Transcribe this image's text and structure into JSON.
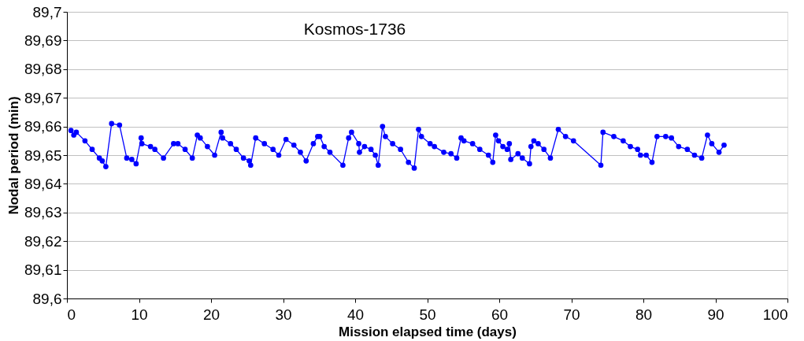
{
  "chart_data": {
    "type": "line",
    "title": "Kosmos-1736",
    "xlabel": "Mission elapsed time (days)",
    "ylabel": "Nodal period (min)",
    "x": [
      0.56,
      0.95,
      1.3,
      2.5,
      3.5,
      4.5,
      4.9,
      5.4,
      6.2,
      7.3,
      8.3,
      9.0,
      9.6,
      10.3,
      10.4,
      11.6,
      12.2,
      13.4,
      14.8,
      15.4,
      16.4,
      17.4,
      18.1,
      18.5,
      19.5,
      20.5,
      21.4,
      21.6,
      22.7,
      23.5,
      24.5,
      25.3,
      25.5,
      26.2,
      27.4,
      28.6,
      29.4,
      30.4,
      31.5,
      32.4,
      33.2,
      34.2,
      34.8,
      35.1,
      35.7,
      36.5,
      38.3,
      39.1,
      39.5,
      40.5,
      40.6,
      41.3,
      42.2,
      42.8,
      43.2,
      43.8,
      44.2,
      45.2,
      46.3,
      47.4,
      48.2,
      48.8,
      49.2,
      50.4,
      51.0,
      52.3,
      53.3,
      54.1,
      54.7,
      55.1,
      56.3,
      57.3,
      58.5,
      59.1,
      59.5,
      59.9,
      60.5,
      61.1,
      61.4,
      61.6,
      62.6,
      63.2,
      64.2,
      64.4,
      64.8,
      65.4,
      66.2,
      67.1,
      68.2,
      69.2,
      70.3,
      74.1,
      74.4,
      75.9,
      77.2,
      78.2,
      79.2,
      79.6,
      80.4,
      81.2,
      81.9,
      83.1,
      83.9,
      84.9,
      86.1,
      87.1,
      88.1,
      88.9,
      89.5,
      90.5,
      91.2
    ],
    "series": [
      {
        "color": "#0000ff",
        "values": [
          89.6586,
          89.657,
          89.658,
          89.655,
          89.652,
          89.649,
          89.648,
          89.646,
          89.661,
          89.6605,
          89.649,
          89.6485,
          89.647,
          89.656,
          89.654,
          89.653,
          89.652,
          89.649,
          89.654,
          89.654,
          89.652,
          89.649,
          89.657,
          89.656,
          89.653,
          89.65,
          89.658,
          89.656,
          89.654,
          89.652,
          89.649,
          89.648,
          89.6465,
          89.656,
          89.654,
          89.652,
          89.65,
          89.6555,
          89.6535,
          89.651,
          89.648,
          89.654,
          89.6565,
          89.6565,
          89.653,
          89.651,
          89.6465,
          89.656,
          89.658,
          89.654,
          89.651,
          89.653,
          89.652,
          89.65,
          89.6465,
          89.66,
          89.6565,
          89.654,
          89.652,
          89.6475,
          89.6455,
          89.659,
          89.6565,
          89.654,
          89.653,
          89.651,
          89.6505,
          89.649,
          89.656,
          89.655,
          89.654,
          89.652,
          89.65,
          89.6475,
          89.657,
          89.655,
          89.653,
          89.652,
          89.654,
          89.6485,
          89.6505,
          89.649,
          89.647,
          89.653,
          89.655,
          89.654,
          89.652,
          89.649,
          89.659,
          89.6565,
          89.655,
          89.6465,
          89.658,
          89.6565,
          89.655,
          89.653,
          89.652,
          89.65,
          89.65,
          89.6475,
          89.6565,
          89.6565,
          89.656,
          89.653,
          89.652,
          89.65,
          89.649,
          89.657,
          89.654,
          89.651,
          89.6535
        ]
      }
    ],
    "xlim": [
      0,
      100
    ],
    "xticks": [
      0,
      10,
      20,
      30,
      40,
      50,
      60,
      70,
      80,
      90,
      100
    ],
    "ylim": [
      89.6,
      89.7
    ],
    "yticks": [
      {
        "value": 89.6,
        "label": "89,6"
      },
      {
        "value": 89.61,
        "label": "89,61"
      },
      {
        "value": 89.62,
        "label": "89,62"
      },
      {
        "value": 89.63,
        "label": "89,63"
      },
      {
        "value": 89.64,
        "label": "89,64"
      },
      {
        "value": 89.65,
        "label": "89,65"
      },
      {
        "value": 89.66,
        "label": "89,66"
      },
      {
        "value": 89.67,
        "label": "89,67"
      },
      {
        "value": 89.68,
        "label": "89,68"
      },
      {
        "value": 89.69,
        "label": "89,69"
      },
      {
        "value": 89.7,
        "label": "89,7"
      }
    ],
    "grid": "y",
    "marker": "circle",
    "line_style": "solid"
  }
}
